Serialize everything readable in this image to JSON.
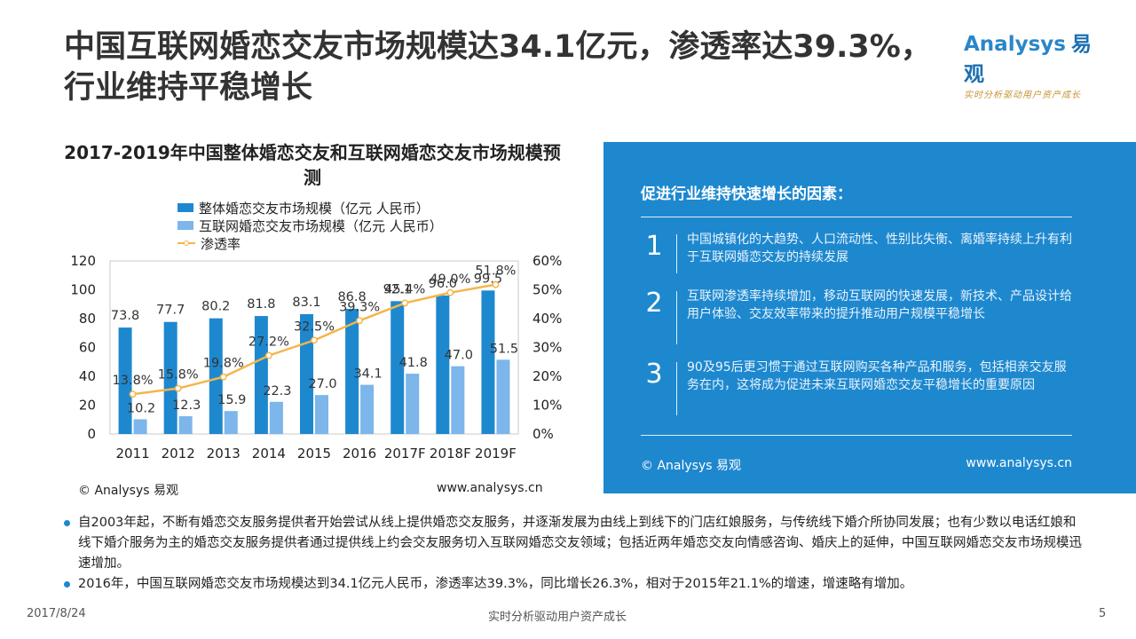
{
  "title": "中国互联网婚恋交友市场规模达34.1亿元，渗透率达39.3%，行业维持平稳增长",
  "logo": {
    "name": "Analysys",
    "name_cn": "易观",
    "slogan": "实时分析驱动用户资产成长"
  },
  "chart_data": {
    "type": "bar",
    "title": "2017-2019年中国整体婚恋交友和互联网婚恋交友市场规模预测",
    "categories": [
      "2011",
      "2012",
      "2013",
      "2014",
      "2015",
      "2016",
      "2017F",
      "2018F",
      "2019F"
    ],
    "series": [
      {
        "name": "整体婚恋交友市场规模（亿元 人民币）",
        "type": "bar",
        "color": "#1e88cf",
        "values": [
          73.8,
          77.7,
          80.2,
          81.8,
          83.1,
          86.8,
          92.1,
          96.0,
          99.5
        ]
      },
      {
        "name": "互联网婚恋交友市场规模（亿元 人民币）",
        "type": "bar",
        "color": "#7cb6ea",
        "values": [
          10.2,
          12.3,
          15.9,
          22.3,
          27.0,
          34.1,
          41.8,
          47.0,
          51.5
        ]
      },
      {
        "name": "渗透率",
        "type": "line",
        "axis": "right",
        "color": "#f5b54a",
        "values": [
          13.8,
          15.8,
          19.8,
          27.2,
          32.5,
          39.3,
          45.4,
          49.0,
          51.8
        ],
        "labels": [
          "13.8%",
          "15.8%",
          "19.8%",
          "27.2%",
          "32.5%",
          "39.3%",
          "45.4%",
          "49.0%",
          "51.8%"
        ]
      }
    ],
    "bar1_labels": [
      "73.8",
      "77.7",
      "80.2",
      "81.8",
      "83.1",
      "86.8",
      "92.1",
      "96.0",
      "99.5"
    ],
    "bar2_labels": [
      "10.2",
      "12.3",
      "15.9",
      "22.3",
      "27.0",
      "34.1",
      "41.8",
      "47.0",
      "51.5"
    ],
    "ylim": [
      0,
      120
    ],
    "yticks": [
      "0",
      "20",
      "40",
      "60",
      "80",
      "100",
      "120"
    ],
    "y2lim": [
      0,
      60
    ],
    "y2ticks": [
      "0%",
      "10%",
      "20%",
      "30%",
      "40%",
      "50%",
      "60%"
    ],
    "grid": false
  },
  "chart_source": {
    "left": "© Analysys 易观",
    "right": "www.analysys.cn"
  },
  "panel": {
    "title": "促进行业维持快速增长的因素：",
    "factors": [
      {
        "num": "1",
        "text": "中国城镇化的大趋势、人口流动性、性别比失衡、离婚率持续上升有利于互联网婚恋交友的持续发展"
      },
      {
        "num": "2",
        "text": "互联网渗透率持续增加，移动互联网的快速发展，新技术、产品设计给用户体验、交友效率带来的提升推动用户规模平稳增长"
      },
      {
        "num": "3",
        "text": "90及95后更习惯于通过互联网购买各种产品和服务，包括相亲交友服务在内，这将成为促进未来互联网婚恋交友平稳增长的重要原因"
      }
    ],
    "source_left": "© Analysys 易观",
    "source_right": "www.analysys.cn"
  },
  "bullets": [
    "自2003年起，不断有婚恋交友服务提供者开始尝试从线上提供婚恋交友服务，并逐渐发展为由线上到线下的门店红娘服务，与传统线下婚介所协同发展；也有少数以电话红娘和线下婚介服务为主的婚恋交友服务提供者通过提供线上约会交友服务切入互联网婚恋交友领域；包括近两年婚恋交友向情感咨询、婚庆上的延伸，中国互联网婚恋交友市场规模迅速增加。",
    "2016年，中国互联网婚恋交友市场规模达到34.1亿元人民币，渗透率达39.3%，同比增长26.3%，相对于2015年21.1%的增速，增速略有增加。"
  ],
  "footer": {
    "date": "2017/8/24",
    "slogan": "实时分析驱动用户资产成长",
    "page": "5"
  }
}
